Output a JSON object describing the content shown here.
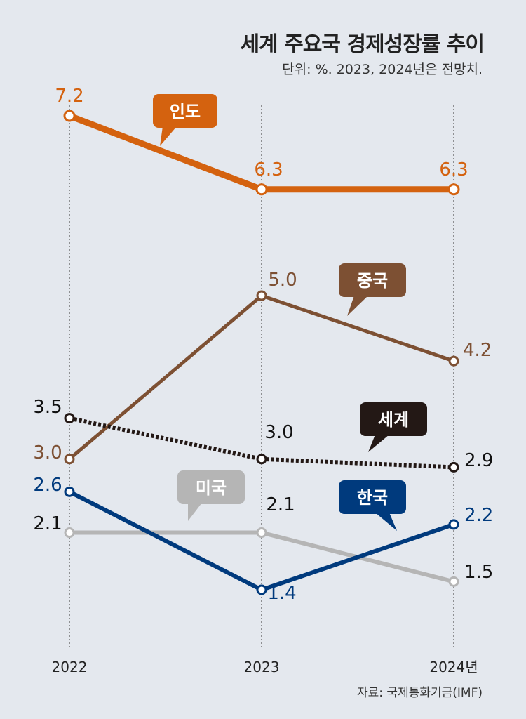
{
  "title": "세계 주요국 경제성장률 추이",
  "subtitle": "단위: %. 2023, 2024년은 전망치.",
  "source": "자료: 국제통화기금(IMF)",
  "chart_data": {
    "type": "line",
    "categories": [
      "2022",
      "2023",
      "2024년"
    ],
    "ylabel": "",
    "xlabel": "",
    "grid": "vertical dotted lines",
    "series": [
      {
        "name": "인도",
        "values": [
          7.2,
          6.3,
          6.3
        ],
        "color": "#d4620f",
        "value_labels": [
          "7.2",
          "6.3",
          "6.3"
        ]
      },
      {
        "name": "중국",
        "values": [
          3.0,
          5.0,
          4.2
        ],
        "color": "#7d5033",
        "value_labels": [
          "3.0",
          "5.0",
          "4.2"
        ]
      },
      {
        "name": "세계",
        "values": [
          3.5,
          3.0,
          2.9
        ],
        "color": "#231815",
        "style": "dotted",
        "value_labels": [
          "3.5",
          "3.0",
          "2.9"
        ]
      },
      {
        "name": "미국",
        "values": [
          2.1,
          2.1,
          1.5
        ],
        "color": "#b5b5b5",
        "value_labels": [
          "2.1",
          "2.1",
          "1.5"
        ]
      },
      {
        "name": "한국",
        "values": [
          2.6,
          1.4,
          2.2
        ],
        "color": "#003a7d",
        "value_labels": [
          "2.6",
          "1.4",
          "2.2"
        ]
      }
    ]
  }
}
